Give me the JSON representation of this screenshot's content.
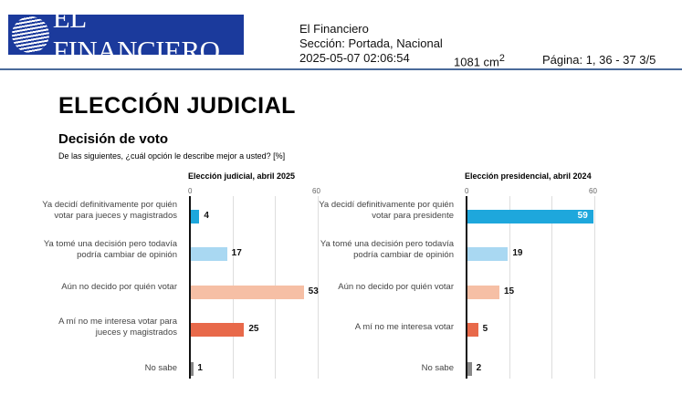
{
  "header": {
    "logo": "EL FINANCIERO",
    "source": "El Financiero",
    "section": "Sección: Portada, Nacional",
    "datetime": "2025-05-07 02:06:54",
    "area": "1081 cm",
    "area_sup": "2",
    "page": "Página: 1, 36 - 37  3/5"
  },
  "title": "ELECCIÓN JUDICIAL",
  "subtitle": "Decisión de voto",
  "question": "De las siguientes, ¿cuál opción le describe mejor a usted? [%]",
  "chart_data": [
    {
      "type": "bar",
      "title": "Elección judicial, abril 2025",
      "xlim": [
        0,
        60
      ],
      "ticks": [
        "0",
        "60"
      ],
      "categories": [
        "Ya decidí definitivamente por quién votar para jueces y magistrados",
        "Ya tomé una decisión pero todavía podría cambiar de opinión",
        "Aún no decido por quién votar",
        "A mí no me interesa votar para jueces y magistrados",
        "No sabe"
      ],
      "values": [
        4,
        17,
        53,
        25,
        1
      ]
    },
    {
      "type": "bar",
      "title": "Elección presidencial, abril 2024",
      "xlim": [
        0,
        60
      ],
      "ticks": [
        "0",
        "60"
      ],
      "categories": [
        "Ya decidí definitivamente por quién votar para presidente",
        "Ya tomé una decisión pero todavía podría cambiar de opinión",
        "Aún no decido por quién votar",
        "A mí no me interesa votar",
        "No sabe"
      ],
      "values": [
        59,
        19,
        15,
        5,
        2
      ]
    }
  ],
  "colors": [
    "#1ea7dc",
    "#a9d8f2",
    "#f6bfa5",
    "#e8694a",
    "#888888"
  ]
}
